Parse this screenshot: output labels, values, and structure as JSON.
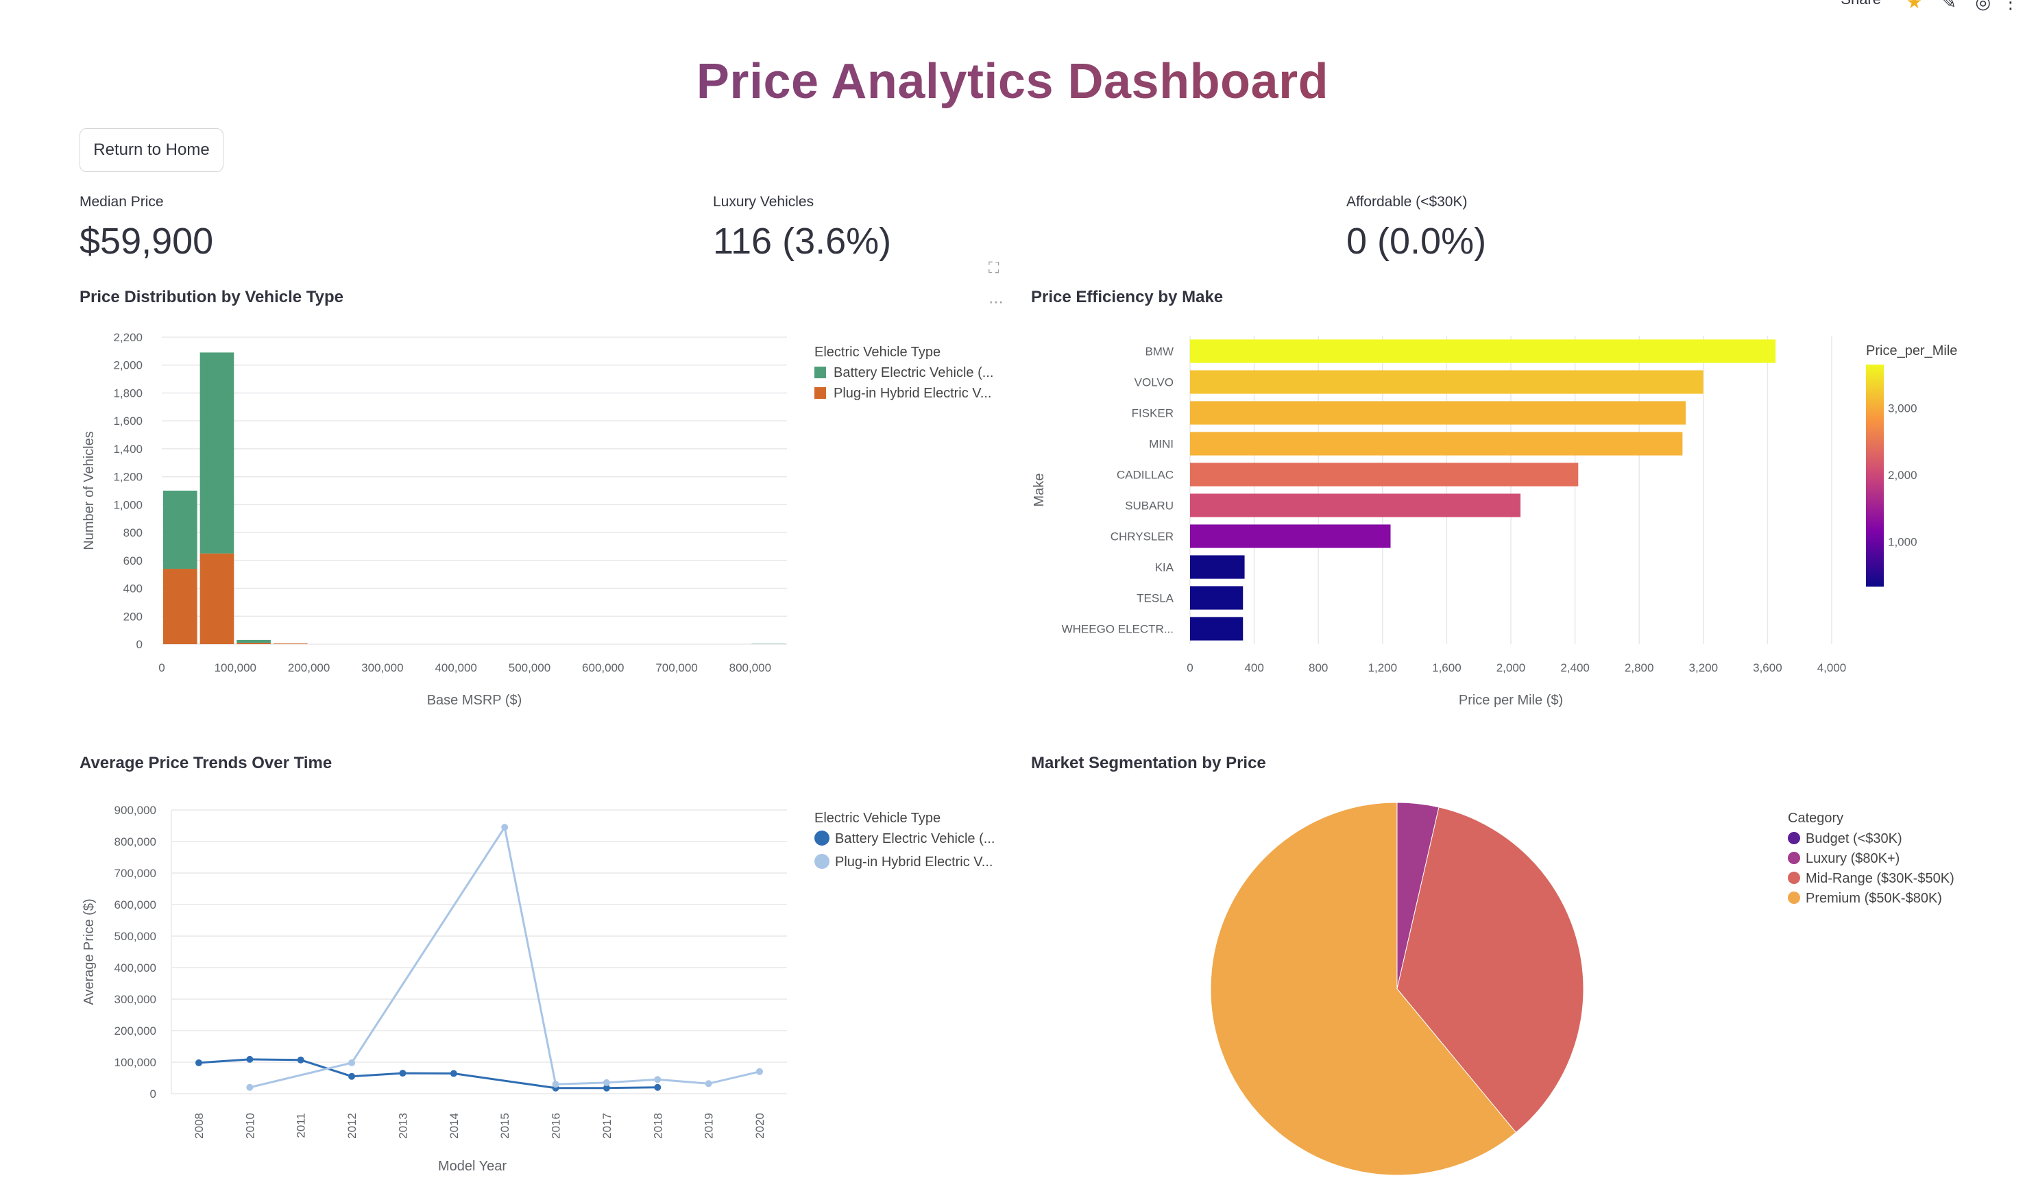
{
  "topbar": {
    "share_label": "Share"
  },
  "page": {
    "title": "Price Analytics Dashboard",
    "return_button": "Return to Home"
  },
  "metrics": [
    {
      "label": "Median Price",
      "value": "$59,900"
    },
    {
      "label": "Luxury Vehicles",
      "value": "116 (3.6%)"
    },
    {
      "label": "Affordable (<$30K)",
      "value": "0 (0.0%)"
    }
  ],
  "colors": {
    "bev": "#4e9e79",
    "phev": "#d2692a",
    "line_bev": "#2f6db3",
    "line_phev": "#a9c5e6",
    "pie_budget": "#5c1f94",
    "pie_luxury": "#a23c8d",
    "pie_mid": "#d6665f",
    "pie_premium": "#f0a84a"
  },
  "chart_data": [
    {
      "type": "bar",
      "title": "Price Distribution by Vehicle Type",
      "xlabel": "Base MSRP ($)",
      "ylabel": "Number of Vehicles",
      "stacked": true,
      "bin_edges": [
        0,
        50000,
        100000,
        150000,
        200000,
        250000,
        300000,
        350000,
        400000,
        450000,
        500000,
        550000,
        600000,
        650000,
        700000,
        750000,
        800000,
        850000
      ],
      "xlim": [
        0,
        850000
      ],
      "ylim": [
        0,
        2200
      ],
      "x_ticks": [
        0,
        100000,
        200000,
        300000,
        400000,
        500000,
        600000,
        700000,
        800000
      ],
      "x_tick_labels": [
        "0",
        "100,000",
        "200,000",
        "300,000",
        "400,000",
        "500,000",
        "600,000",
        "700,000",
        "800,000"
      ],
      "y_ticks": [
        0,
        200,
        400,
        600,
        800,
        1000,
        1200,
        1400,
        1600,
        1800,
        2000,
        2200
      ],
      "y_tick_labels": [
        "0",
        "200",
        "400",
        "600",
        "800",
        "1,000",
        "1,200",
        "1,400",
        "1,600",
        "1,800",
        "2,000",
        "2,200"
      ],
      "legend_title": "Electric Vehicle Type",
      "legend_position": "right",
      "series": [
        {
          "name": "Plug-in Hybrid Electric V...",
          "values": [
            540,
            650,
            10,
            5,
            0,
            0,
            0,
            0,
            0,
            0,
            0,
            0,
            0,
            0,
            0,
            0,
            0
          ]
        },
        {
          "name": "Battery Electric Vehicle (...",
          "values": [
            560,
            1440,
            20,
            0,
            0,
            0,
            0,
            0,
            0,
            0,
            0,
            0,
            0,
            0,
            0,
            0,
            2
          ]
        }
      ]
    },
    {
      "type": "bar",
      "orientation": "horizontal",
      "title": "Price Efficiency by Make",
      "xlabel": "Price per Mile ($)",
      "ylabel": "Make",
      "xlim": [
        0,
        4000
      ],
      "x_ticks": [
        0,
        400,
        800,
        1200,
        1600,
        2000,
        2400,
        2800,
        3200,
        3600,
        4000
      ],
      "x_tick_labels": [
        "0",
        "400",
        "800",
        "1,200",
        "1,600",
        "2,000",
        "2,400",
        "2,800",
        "3,200",
        "3,600",
        "4,000"
      ],
      "categories": [
        "BMW",
        "VOLVO",
        "FISKER",
        "MINI",
        "CADILLAC",
        "SUBARU",
        "CHRYSLER",
        "KIA",
        "TESLA",
        "WHEEGO ELECTR..."
      ],
      "values": [
        3650,
        3200,
        3090,
        3070,
        2420,
        2060,
        1250,
        340,
        330,
        330
      ],
      "colorbar_title": "Price_per_Mile",
      "colorbar_range": [
        330,
        3650
      ],
      "colorbar_ticks": [
        1000,
        2000,
        3000
      ],
      "colorbar_tick_labels": [
        "1,000",
        "2,000",
        "3,000"
      ],
      "colorscale": "plasma",
      "grid": true
    },
    {
      "type": "line",
      "title": "Average Price Trends Over Time",
      "xlabel": "Model Year",
      "ylabel": "Average Price ($)",
      "x": [
        2008,
        2010,
        2011,
        2012,
        2013,
        2014,
        2015,
        2016,
        2017,
        2018,
        2019,
        2020
      ],
      "ylim": [
        0,
        900000
      ],
      "y_ticks": [
        0,
        100000,
        200000,
        300000,
        400000,
        500000,
        600000,
        700000,
        800000,
        900000
      ],
      "y_tick_labels": [
        "0",
        "100,000",
        "200,000",
        "300,000",
        "400,000",
        "500,000",
        "600,000",
        "700,000",
        "800,000",
        "900,000"
      ],
      "legend_title": "Electric Vehicle Type",
      "legend_position": "right",
      "series": [
        {
          "name": "Battery Electric Vehicle (...",
          "x": [
            2008,
            2010,
            2011,
            2012,
            2013,
            2014,
            2016,
            2017,
            2018
          ],
          "values": [
            98000,
            109000,
            107000,
            55000,
            65000,
            64000,
            18000,
            18000,
            20000
          ]
        },
        {
          "name": "Plug-in Hybrid Electric V...",
          "x": [
            2010,
            2012,
            2015,
            2016,
            2017,
            2018,
            2019,
            2020
          ],
          "values": [
            20000,
            98000,
            845000,
            30000,
            35000,
            45000,
            32000,
            70000
          ]
        }
      ]
    },
    {
      "type": "pie",
      "title": "Market Segmentation by Price",
      "legend_title": "Category",
      "legend_position": "right",
      "labels": [
        "Budget (<$30K)",
        "Luxury ($80K+)",
        "Mid-Range ($30K-$50K)",
        "Premium ($50K-$80K)"
      ],
      "values": [
        0,
        3.6,
        35.4,
        61.0
      ]
    }
  ]
}
